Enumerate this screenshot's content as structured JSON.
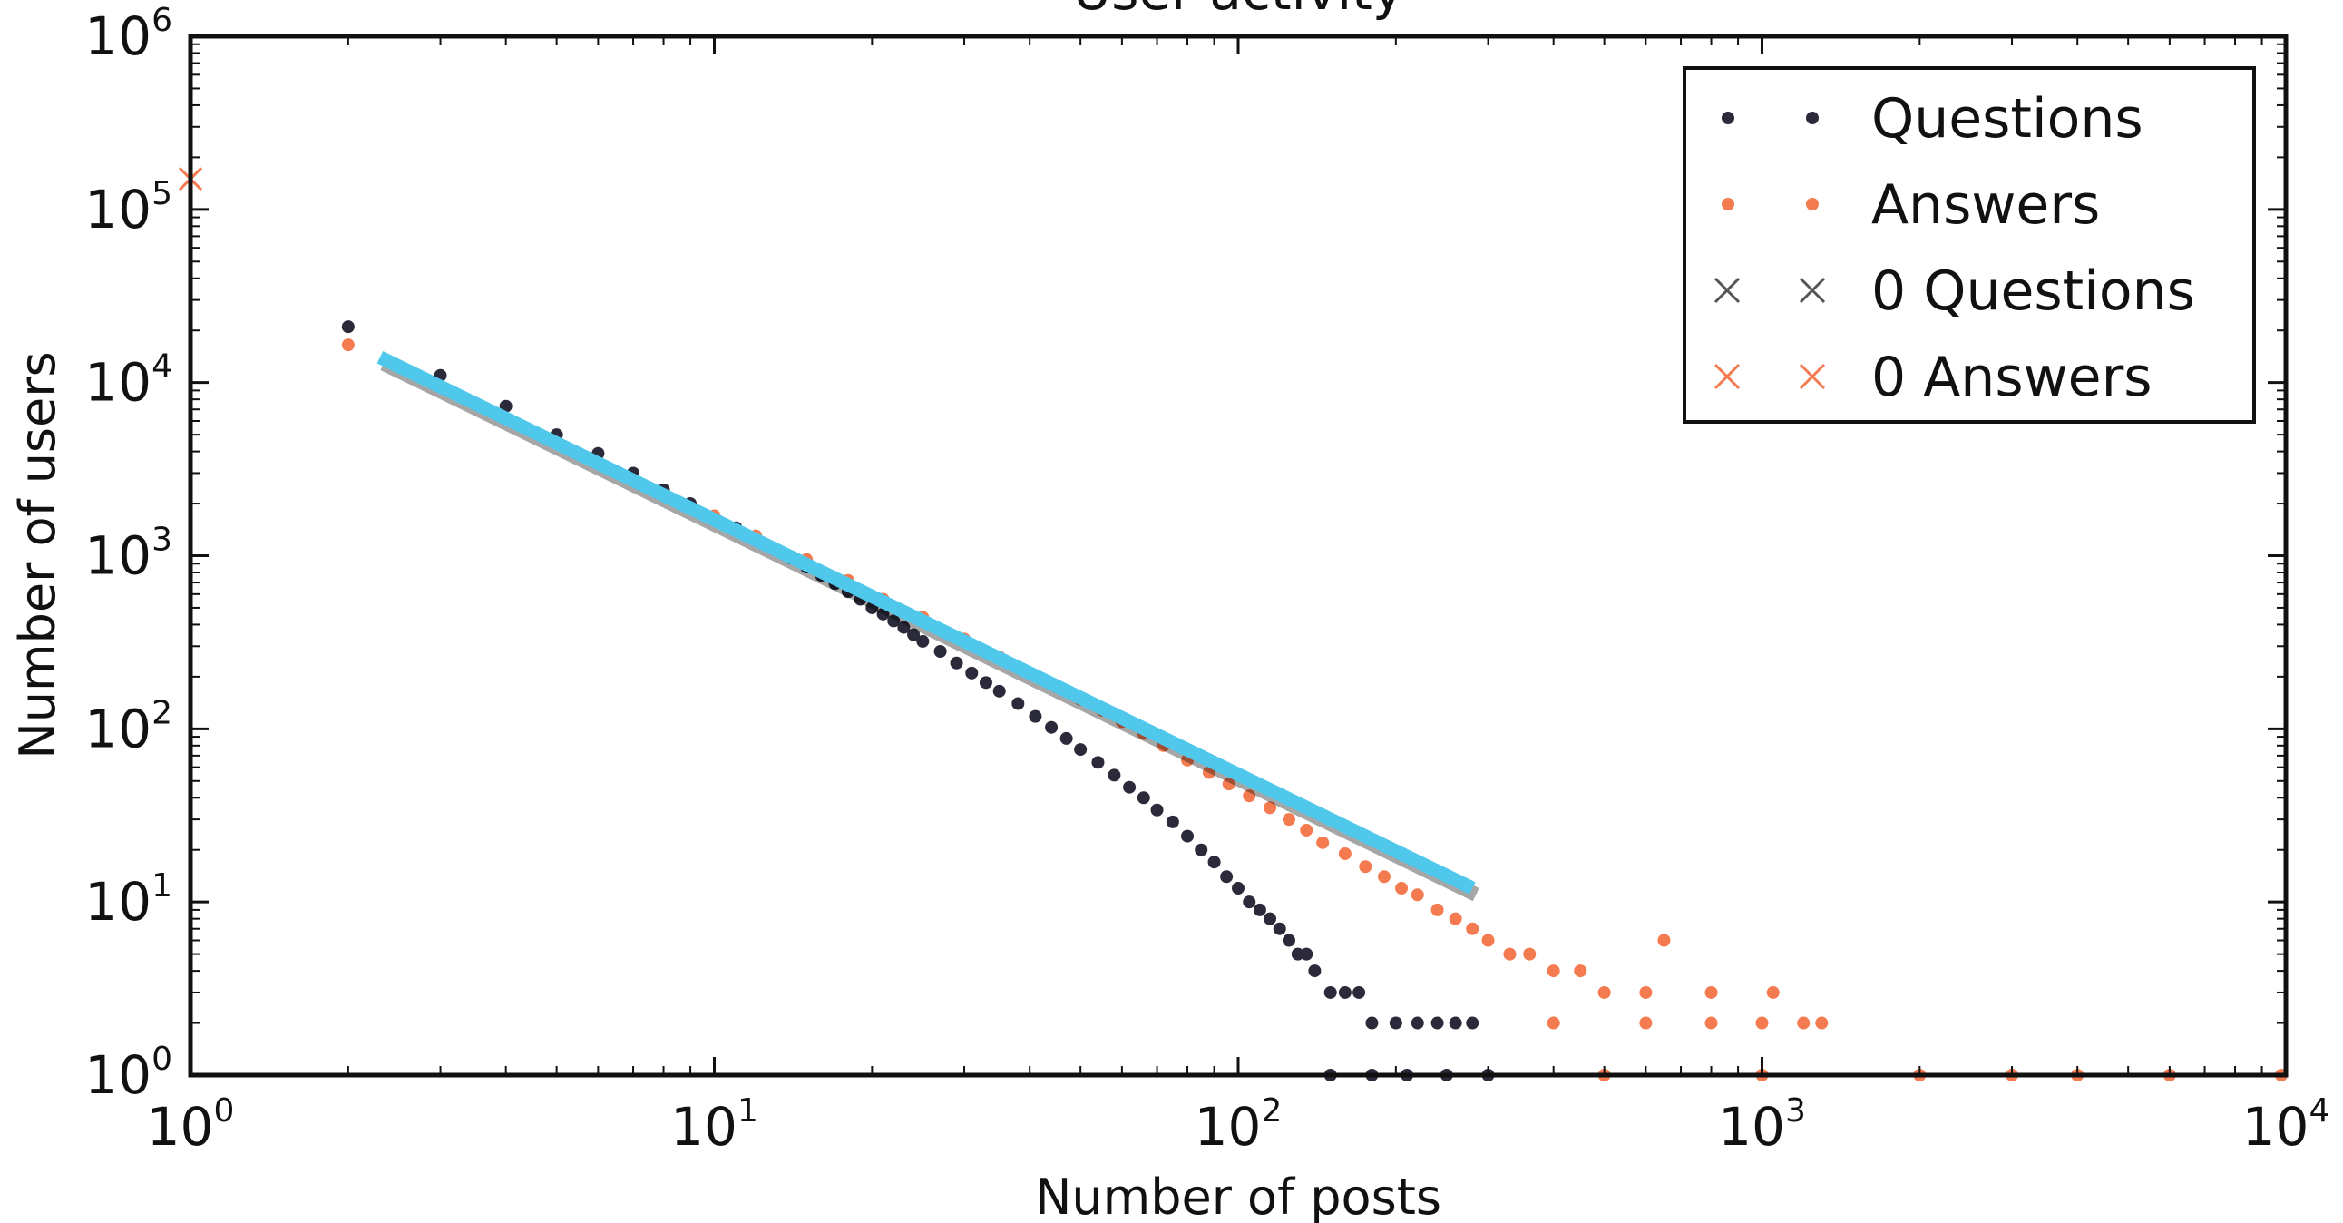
{
  "chart_data": {
    "type": "scatter",
    "title": "User activity",
    "xlabel": "Number of posts",
    "ylabel": "Number of users",
    "x_scale": "log",
    "y_scale": "log",
    "xlim": [
      1,
      10000
    ],
    "ylim": [
      1,
      1000000
    ],
    "x_ticks": [
      1,
      10,
      100,
      1000,
      10000
    ],
    "y_ticks": [
      1,
      10,
      100,
      1000,
      10000,
      100000,
      1000000
    ],
    "tick_base": "10",
    "x_tick_exponents": [
      "0",
      "1",
      "2",
      "3",
      "4"
    ],
    "y_tick_exponents": [
      "0",
      "1",
      "2",
      "3",
      "4",
      "5",
      "6"
    ],
    "grid": false,
    "legend_position": "top-right",
    "series": [
      {
        "name": "Questions",
        "marker": "dot",
        "color": "#2a2a3a",
        "points": [
          [
            2,
            21000
          ],
          [
            3,
            11000
          ],
          [
            4,
            7300
          ],
          [
            5,
            5000
          ],
          [
            6,
            3900
          ],
          [
            7,
            3000
          ],
          [
            8,
            2400
          ],
          [
            9,
            2000
          ],
          [
            10,
            1650
          ],
          [
            11,
            1450
          ],
          [
            12,
            1250
          ],
          [
            13,
            1100
          ],
          [
            14,
            970
          ],
          [
            15,
            860
          ],
          [
            16,
            770
          ],
          [
            17,
            690
          ],
          [
            18,
            620
          ],
          [
            19,
            560
          ],
          [
            20,
            500
          ],
          [
            21,
            460
          ],
          [
            22,
            420
          ],
          [
            23,
            385
          ],
          [
            24,
            350
          ],
          [
            25,
            320
          ],
          [
            27,
            280
          ],
          [
            29,
            240
          ],
          [
            31,
            210
          ],
          [
            33,
            185
          ],
          [
            35,
            165
          ],
          [
            38,
            140
          ],
          [
            41,
            118
          ],
          [
            44,
            102
          ],
          [
            47,
            88
          ],
          [
            50,
            76
          ],
          [
            54,
            64
          ],
          [
            58,
            54
          ],
          [
            62,
            46
          ],
          [
            66,
            40
          ],
          [
            70,
            34
          ],
          [
            75,
            29
          ],
          [
            80,
            24
          ],
          [
            85,
            20
          ],
          [
            90,
            17
          ],
          [
            95,
            14
          ],
          [
            100,
            12
          ],
          [
            105,
            10
          ],
          [
            110,
            9
          ],
          [
            115,
            8
          ],
          [
            120,
            7
          ],
          [
            125,
            6
          ],
          [
            130,
            5
          ],
          [
            135,
            5
          ],
          [
            140,
            4
          ],
          [
            150,
            3
          ],
          [
            160,
            3
          ],
          [
            170,
            3
          ],
          [
            180,
            2
          ],
          [
            200,
            2
          ],
          [
            220,
            2
          ],
          [
            240,
            2
          ],
          [
            260,
            2
          ],
          [
            280,
            2
          ],
          [
            150,
            1
          ],
          [
            180,
            1
          ],
          [
            210,
            1
          ],
          [
            250,
            1
          ],
          [
            300,
            1
          ]
        ]
      },
      {
        "name": "Answers",
        "marker": "dot",
        "color": "#f47a50",
        "points": [
          [
            2,
            16500
          ],
          [
            10,
            1700
          ],
          [
            12,
            1300
          ],
          [
            15,
            950
          ],
          [
            18,
            720
          ],
          [
            21,
            560
          ],
          [
            25,
            440
          ],
          [
            30,
            330
          ],
          [
            35,
            260
          ],
          [
            40,
            210
          ],
          [
            45,
            175
          ],
          [
            50,
            148
          ],
          [
            55,
            128
          ],
          [
            60,
            110
          ],
          [
            66,
            94
          ],
          [
            72,
            80
          ],
          [
            80,
            66
          ],
          [
            88,
            56
          ],
          [
            96,
            48
          ],
          [
            105,
            41
          ],
          [
            115,
            35
          ],
          [
            125,
            30
          ],
          [
            135,
            26
          ],
          [
            145,
            22
          ],
          [
            160,
            19
          ],
          [
            175,
            16
          ],
          [
            190,
            14
          ],
          [
            205,
            12
          ],
          [
            220,
            11
          ],
          [
            240,
            9
          ],
          [
            260,
            8
          ],
          [
            280,
            7
          ],
          [
            300,
            6
          ],
          [
            330,
            5
          ],
          [
            360,
            5
          ],
          [
            400,
            4
          ],
          [
            450,
            4
          ],
          [
            500,
            3
          ],
          [
            600,
            3
          ],
          [
            800,
            3
          ],
          [
            1050,
            3
          ],
          [
            400,
            2
          ],
          [
            600,
            2
          ],
          [
            800,
            2
          ],
          [
            1000,
            2
          ],
          [
            1200,
            2
          ],
          [
            1300,
            2
          ],
          [
            650,
            6
          ],
          [
            500,
            1
          ],
          [
            1000,
            1
          ],
          [
            2000,
            1
          ],
          [
            3000,
            1
          ],
          [
            4000,
            1
          ],
          [
            6000,
            1
          ],
          [
            9800,
            1
          ]
        ]
      },
      {
        "name": "0 Questions",
        "marker": "x",
        "color": "#555555",
        "points": []
      },
      {
        "name": "0 Answers",
        "marker": "x",
        "color": "#f47a50",
        "points": [
          [
            1,
            150000
          ]
        ]
      }
    ],
    "fit_line": {
      "color": "#4fc8ec",
      "points": [
        [
          2.3,
          14000
        ],
        [
          280,
          12
        ]
      ]
    }
  }
}
